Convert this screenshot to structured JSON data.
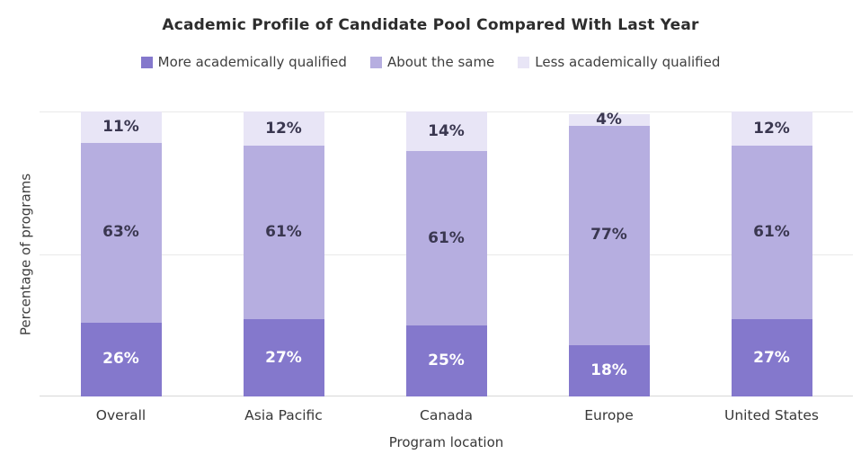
{
  "title": "Academic Profile of Candidate Pool Compared With Last Year",
  "legend": [
    {
      "label": "More academically qualified",
      "color": "#8478cc"
    },
    {
      "label": "About the same",
      "color": "#b6aee0"
    },
    {
      "label": "Less academically qualified",
      "color": "#e8e5f6"
    }
  ],
  "chart_data": {
    "type": "bar",
    "stacked": true,
    "title": "Academic Profile of Candidate Pool Compared With Last Year",
    "categories": [
      "Overall",
      "Asia Pacific",
      "Canada",
      "Europe",
      "United States"
    ],
    "series": [
      {
        "name": "More academically qualified",
        "color": "#8478cc",
        "label_color": "#ffffff",
        "values": [
          26,
          27,
          25,
          18,
          27
        ]
      },
      {
        "name": "About the same",
        "color": "#b6aee0",
        "label_color": "#3a3750",
        "values": [
          63,
          61,
          61,
          77,
          61
        ]
      },
      {
        "name": "Less academically qualified",
        "color": "#e8e5f6",
        "label_color": "#3a3750",
        "values": [
          11,
          12,
          14,
          4,
          12
        ]
      }
    ],
    "label_format": "{v}%",
    "xlabel": "Program location",
    "ylabel": "Percentage of programs",
    "ylim": [
      0,
      100
    ],
    "gridlines_percent": [
      0,
      50,
      100
    ],
    "grid": true,
    "y_tick_labels_visible": false,
    "legend_position": "top"
  },
  "colors": {
    "background": "#ffffff",
    "gridline": "#e9e9e9",
    "axis_baseline": "#d7d7d7",
    "title_text": "#2d2d2d",
    "axis_text": "#383838",
    "data_label_dark": "#3a3750",
    "data_label_light": "#ffffff"
  }
}
